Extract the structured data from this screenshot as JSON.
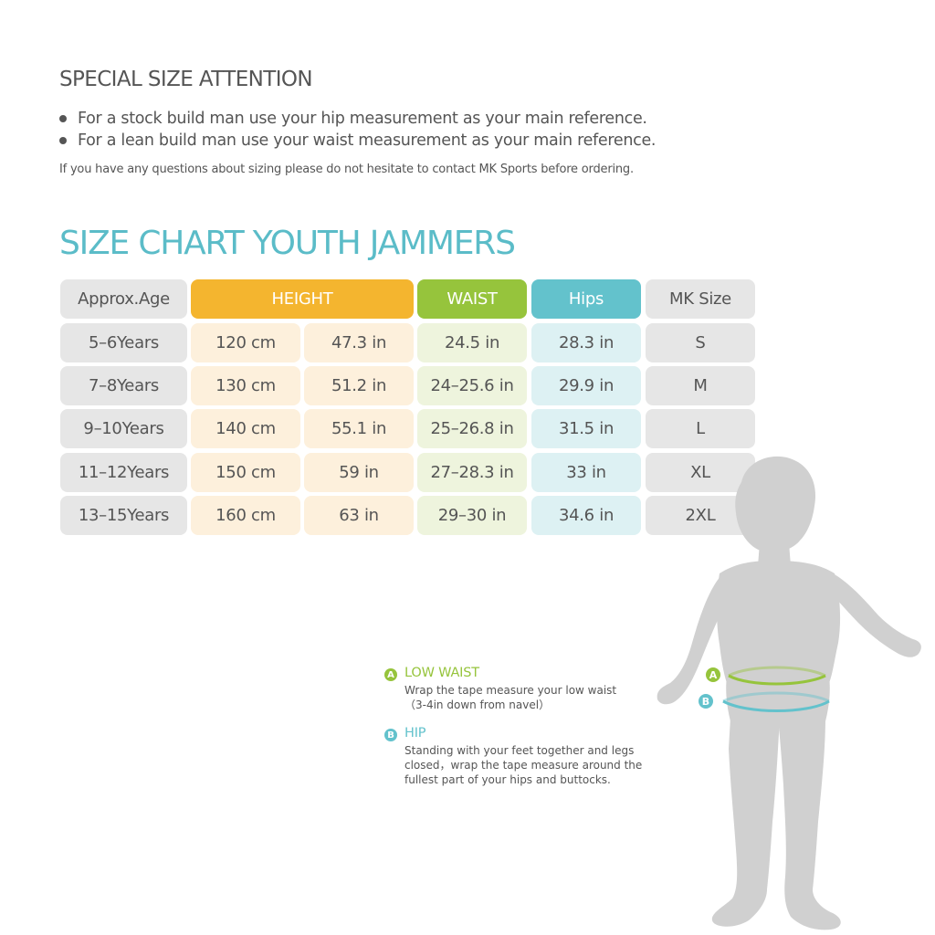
{
  "attention": {
    "title": "SPECIAL SIZE ATTENTION",
    "bullets": [
      "For a stock build man use your hip measurement as your main reference.",
      "For a lean build man use your waist measurement as your main reference."
    ],
    "note": "If you have any questions about sizing please do not hesitate to contact MK Sports before ordering."
  },
  "chart_title": "SIZE CHART YOUTH JAMMERS",
  "table": {
    "headers": {
      "age": "Approx.Age",
      "height": "HEIGHT",
      "waist": "WAIST",
      "hips": "Hips",
      "size": "MK Size"
    },
    "rows": [
      {
        "age": "5–6Years",
        "cm": "120 cm",
        "in": "47.3 in",
        "waist": "24.5 in",
        "hips": "28.3 in",
        "size": "S"
      },
      {
        "age": "7–8Years",
        "cm": "130 cm",
        "in": "51.2 in",
        "waist": "24–25.6 in",
        "hips": "29.9 in",
        "size": "M"
      },
      {
        "age": "9–10Years",
        "cm": "140 cm",
        "in": "55.1 in",
        "waist": "25–26.8 in",
        "hips": "31.5 in",
        "size": "L"
      },
      {
        "age": "11–12Years",
        "cm": "150 cm",
        "in": "59 in",
        "waist": "27–28.3 in",
        "hips": "33 in",
        "size": "XL"
      },
      {
        "age": "13–15Years",
        "cm": "160 cm",
        "in": "63 in",
        "waist": "29–30 in",
        "hips": "34.6 in",
        "size": "2XL"
      }
    ]
  },
  "legend": {
    "a": {
      "badge": "A",
      "title": "LOW WAIST",
      "lines": [
        "Wrap the tape measure your low waist",
        "（3-4in down from navel）"
      ]
    },
    "b": {
      "badge": "B",
      "title": "HIP",
      "lines": [
        "Standing with your feet together and legs",
        "closed，wrap the tape measure around the",
        "fullest part of your hips and buttocks."
      ]
    }
  },
  "figure": {
    "badge_a": "A",
    "badge_b": "B"
  },
  "colors": {
    "title_teal": "#5bbcc8",
    "height_orange": "#f4b52f",
    "waist_green": "#96c43c",
    "hips_teal": "#63c2cc",
    "gray": "#e6e6e6",
    "silhouette": "#d0d0d0"
  }
}
